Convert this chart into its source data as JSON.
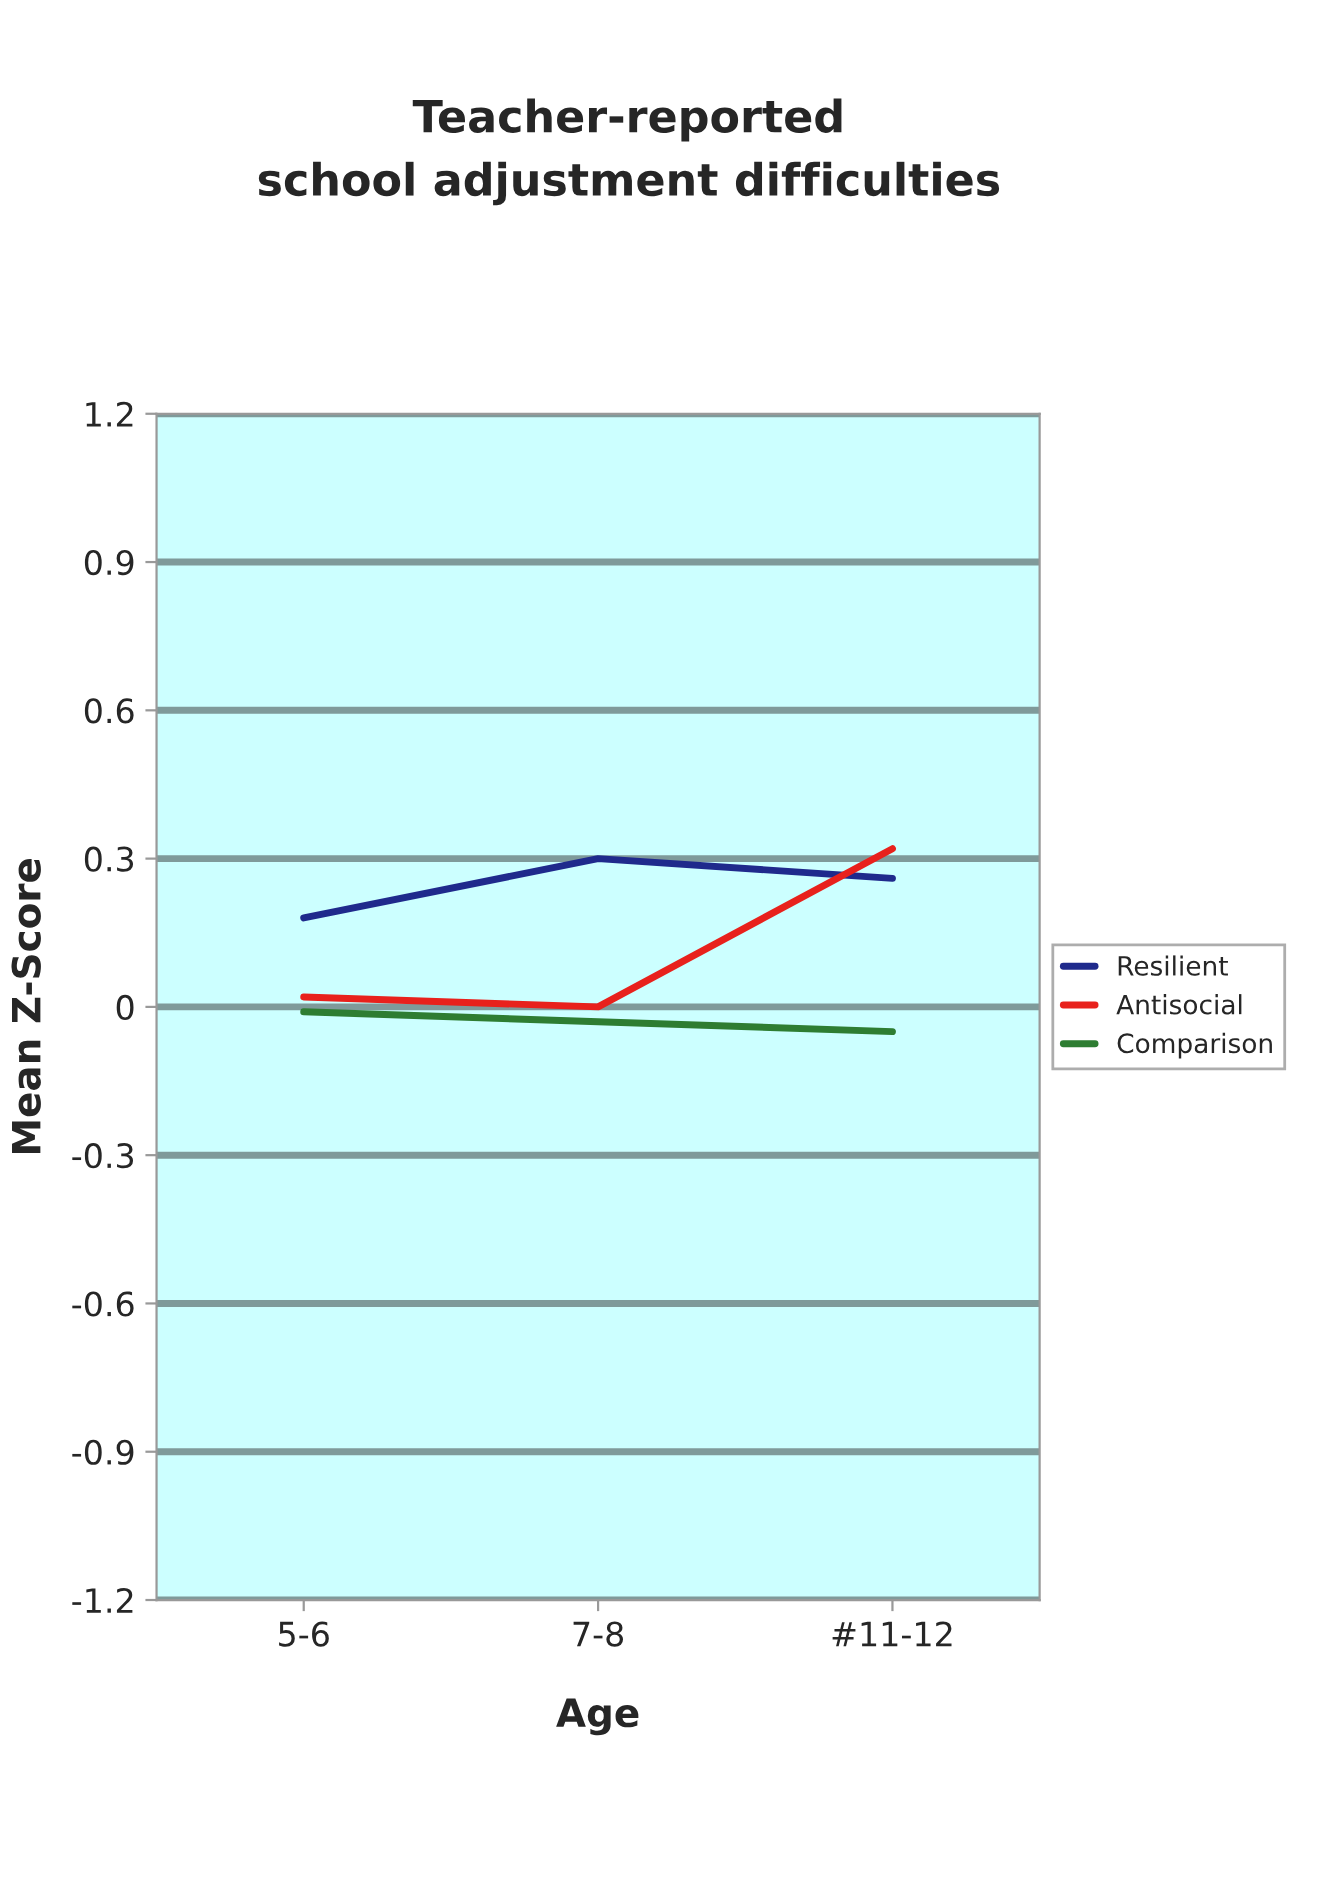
{
  "chart_data": {
    "type": "line",
    "title": "Teacher-reported\nschool adjustment difficulties",
    "xlabel": "Age",
    "ylabel": "Mean Z-Score",
    "categories": [
      "5-6",
      "7-8",
      "#11-12"
    ],
    "series": [
      {
        "name": "Resilient",
        "color": "#1f2a8c",
        "values": [
          0.18,
          0.3,
          0.26
        ]
      },
      {
        "name": "Antisocial",
        "color": "#e8211c",
        "values": [
          0.02,
          0.0,
          0.32
        ]
      },
      {
        "name": "Comparison",
        "color": "#2e7d32",
        "values": [
          -0.01,
          -0.03,
          -0.05
        ]
      }
    ],
    "ylim": [
      -1.2,
      1.2
    ],
    "yticks": [
      1.2,
      0.9,
      0.6,
      0.3,
      0,
      -0.3,
      -0.6,
      -0.9,
      -1.2
    ],
    "grid": "y",
    "legend": "right",
    "marker": "none",
    "line_style": "solid"
  }
}
